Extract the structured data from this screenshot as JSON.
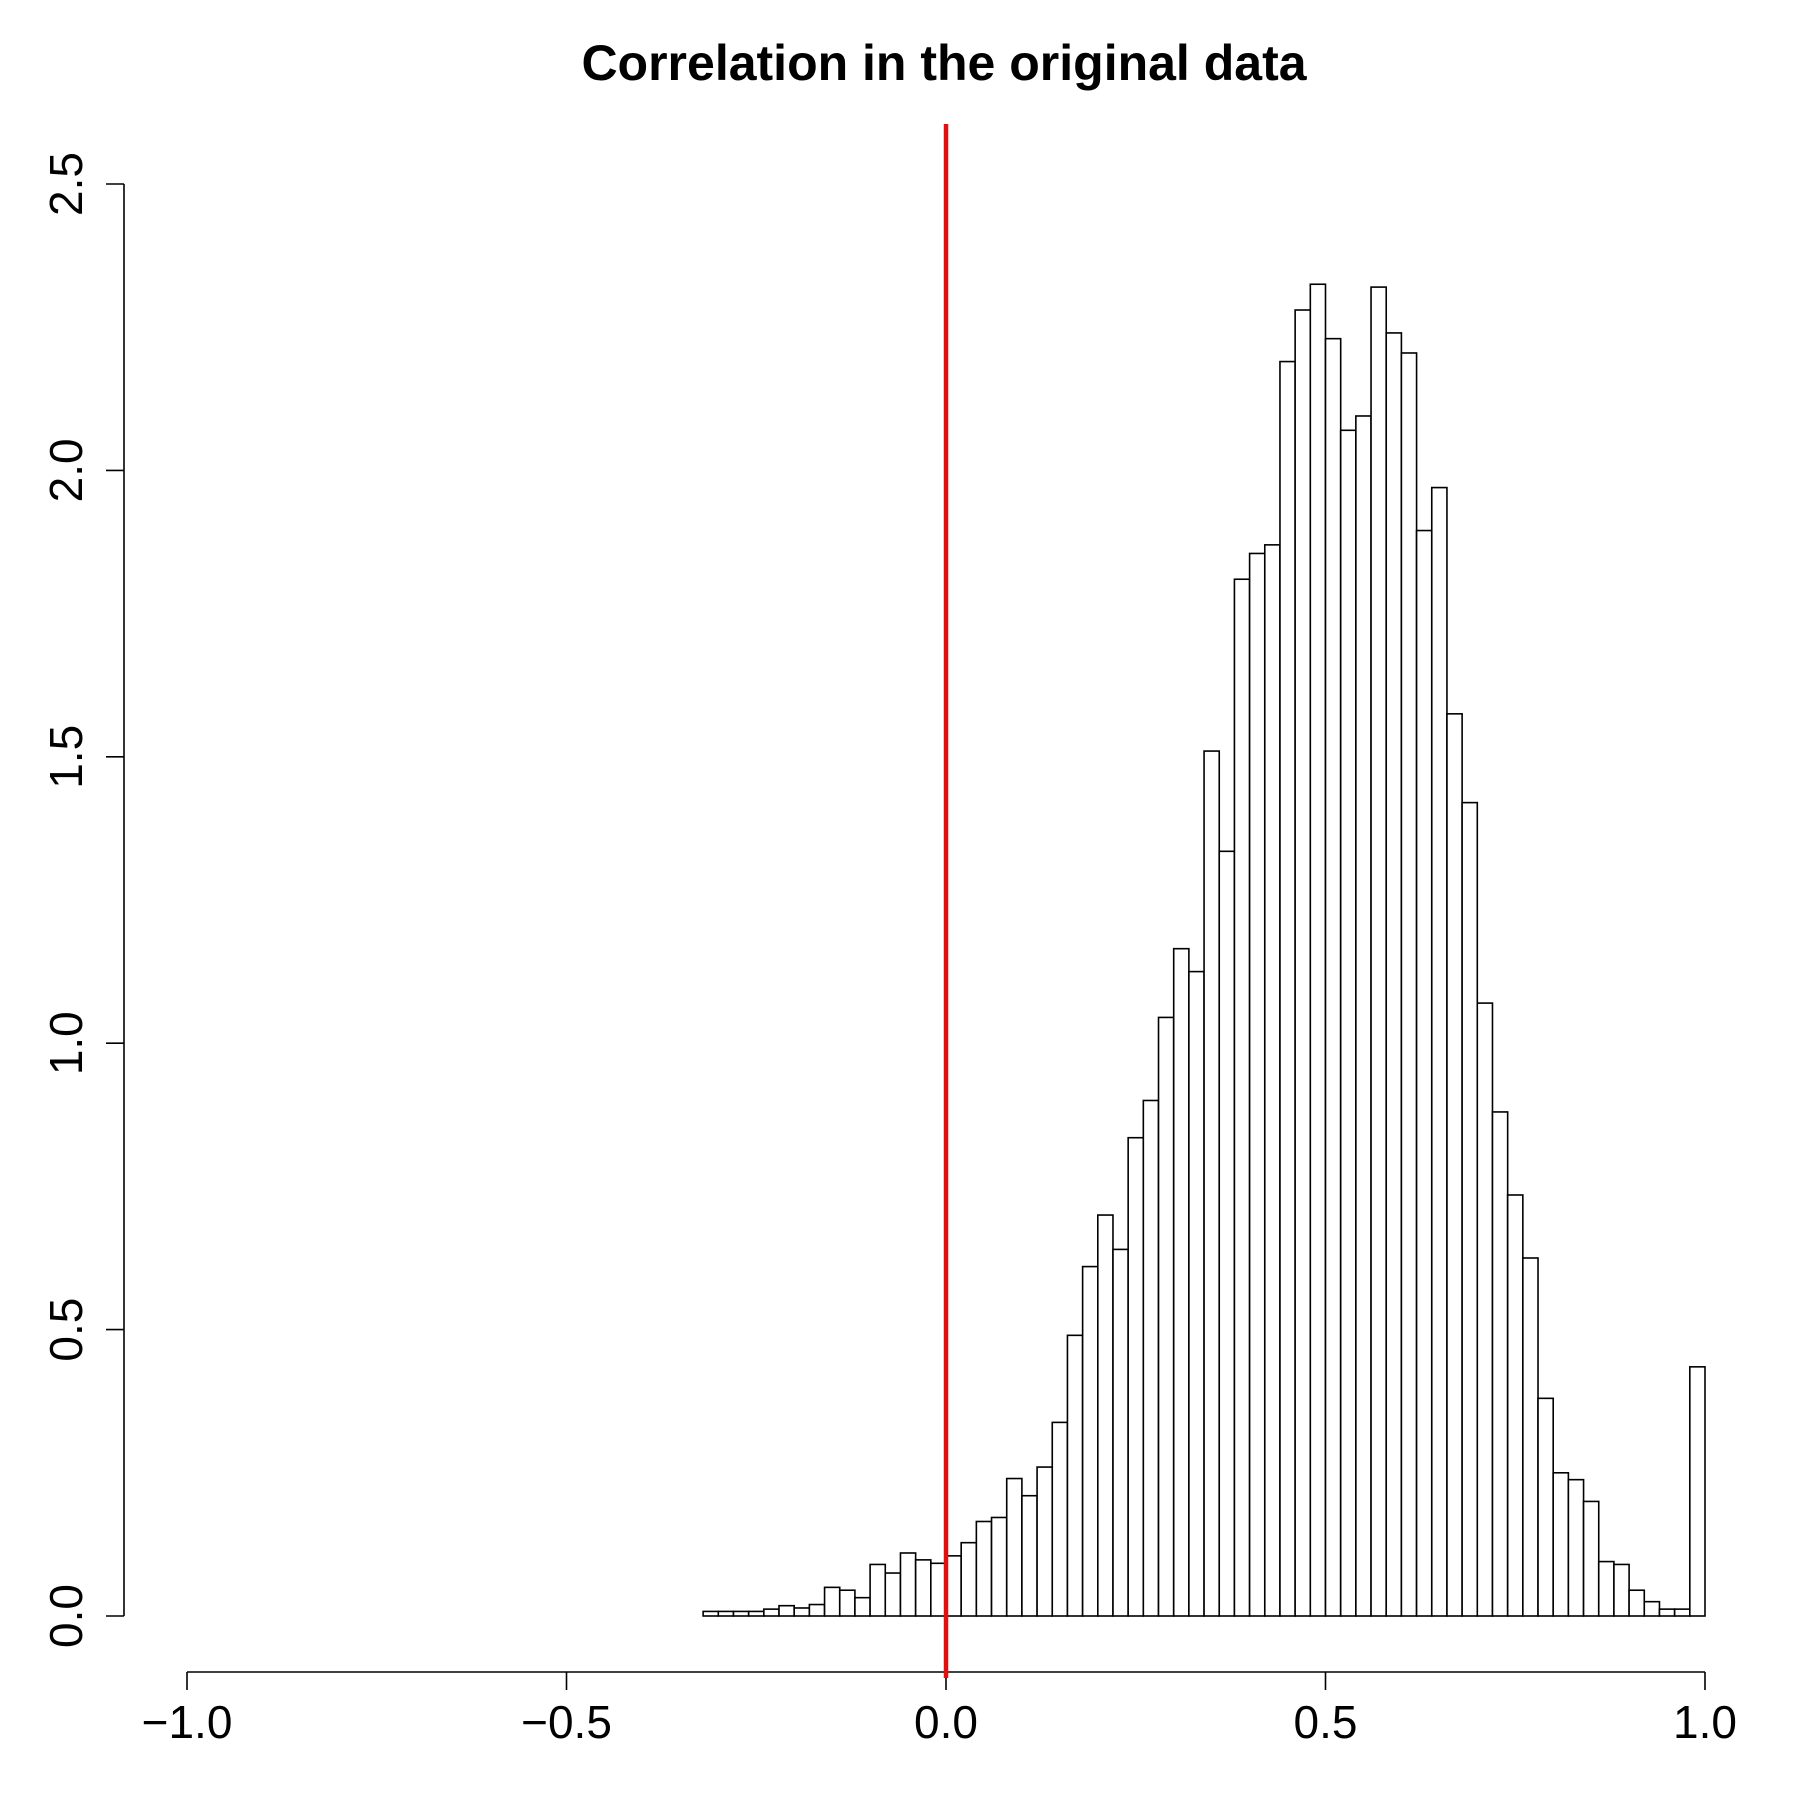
{
  "chart_data": {
    "type": "bar",
    "title": "Correlation in the original data",
    "xlabel": "",
    "ylabel": "",
    "xlim": [
      -1.0,
      1.0
    ],
    "ylim": [
      0,
      2.5
    ],
    "x_ticks": [
      "−1.0",
      "−0.5",
      "0.0",
      "0.5",
      "1.0"
    ],
    "x_tick_values": [
      -1.0,
      -0.5,
      0.0,
      0.5,
      1.0
    ],
    "y_ticks": [
      "0.0",
      "0.5",
      "1.0",
      "1.5",
      "2.0",
      "2.5"
    ],
    "y_tick_values": [
      0.0,
      0.5,
      1.0,
      1.5,
      2.0,
      2.5
    ],
    "bin_width": 0.02,
    "bin_start": -0.32,
    "values": [
      0.008,
      0.008,
      0.008,
      0.008,
      0.012,
      0.018,
      0.014,
      0.02,
      0.05,
      0.045,
      0.032,
      0.09,
      0.075,
      0.11,
      0.098,
      0.092,
      0.105,
      0.128,
      0.165,
      0.172,
      0.24,
      0.21,
      0.26,
      0.338,
      0.49,
      0.61,
      0.7,
      0.64,
      0.835,
      0.9,
      1.045,
      1.165,
      1.125,
      1.51,
      1.335,
      1.81,
      1.855,
      1.87,
      2.19,
      2.28,
      2.325,
      2.23,
      2.07,
      2.095,
      2.32,
      2.24,
      2.205,
      1.895,
      1.97,
      1.575,
      1.42,
      1.07,
      0.88,
      0.735,
      0.625,
      0.38,
      0.25,
      0.238,
      0.2,
      0.095,
      0.09,
      0.045,
      0.025,
      0.012,
      0.012,
      0.435
    ],
    "reference_line": {
      "x": 0.0,
      "color": "#e01010"
    },
    "bar_fill": "#ffffff",
    "bar_stroke": "#000000",
    "grid": false,
    "legend": "none"
  }
}
